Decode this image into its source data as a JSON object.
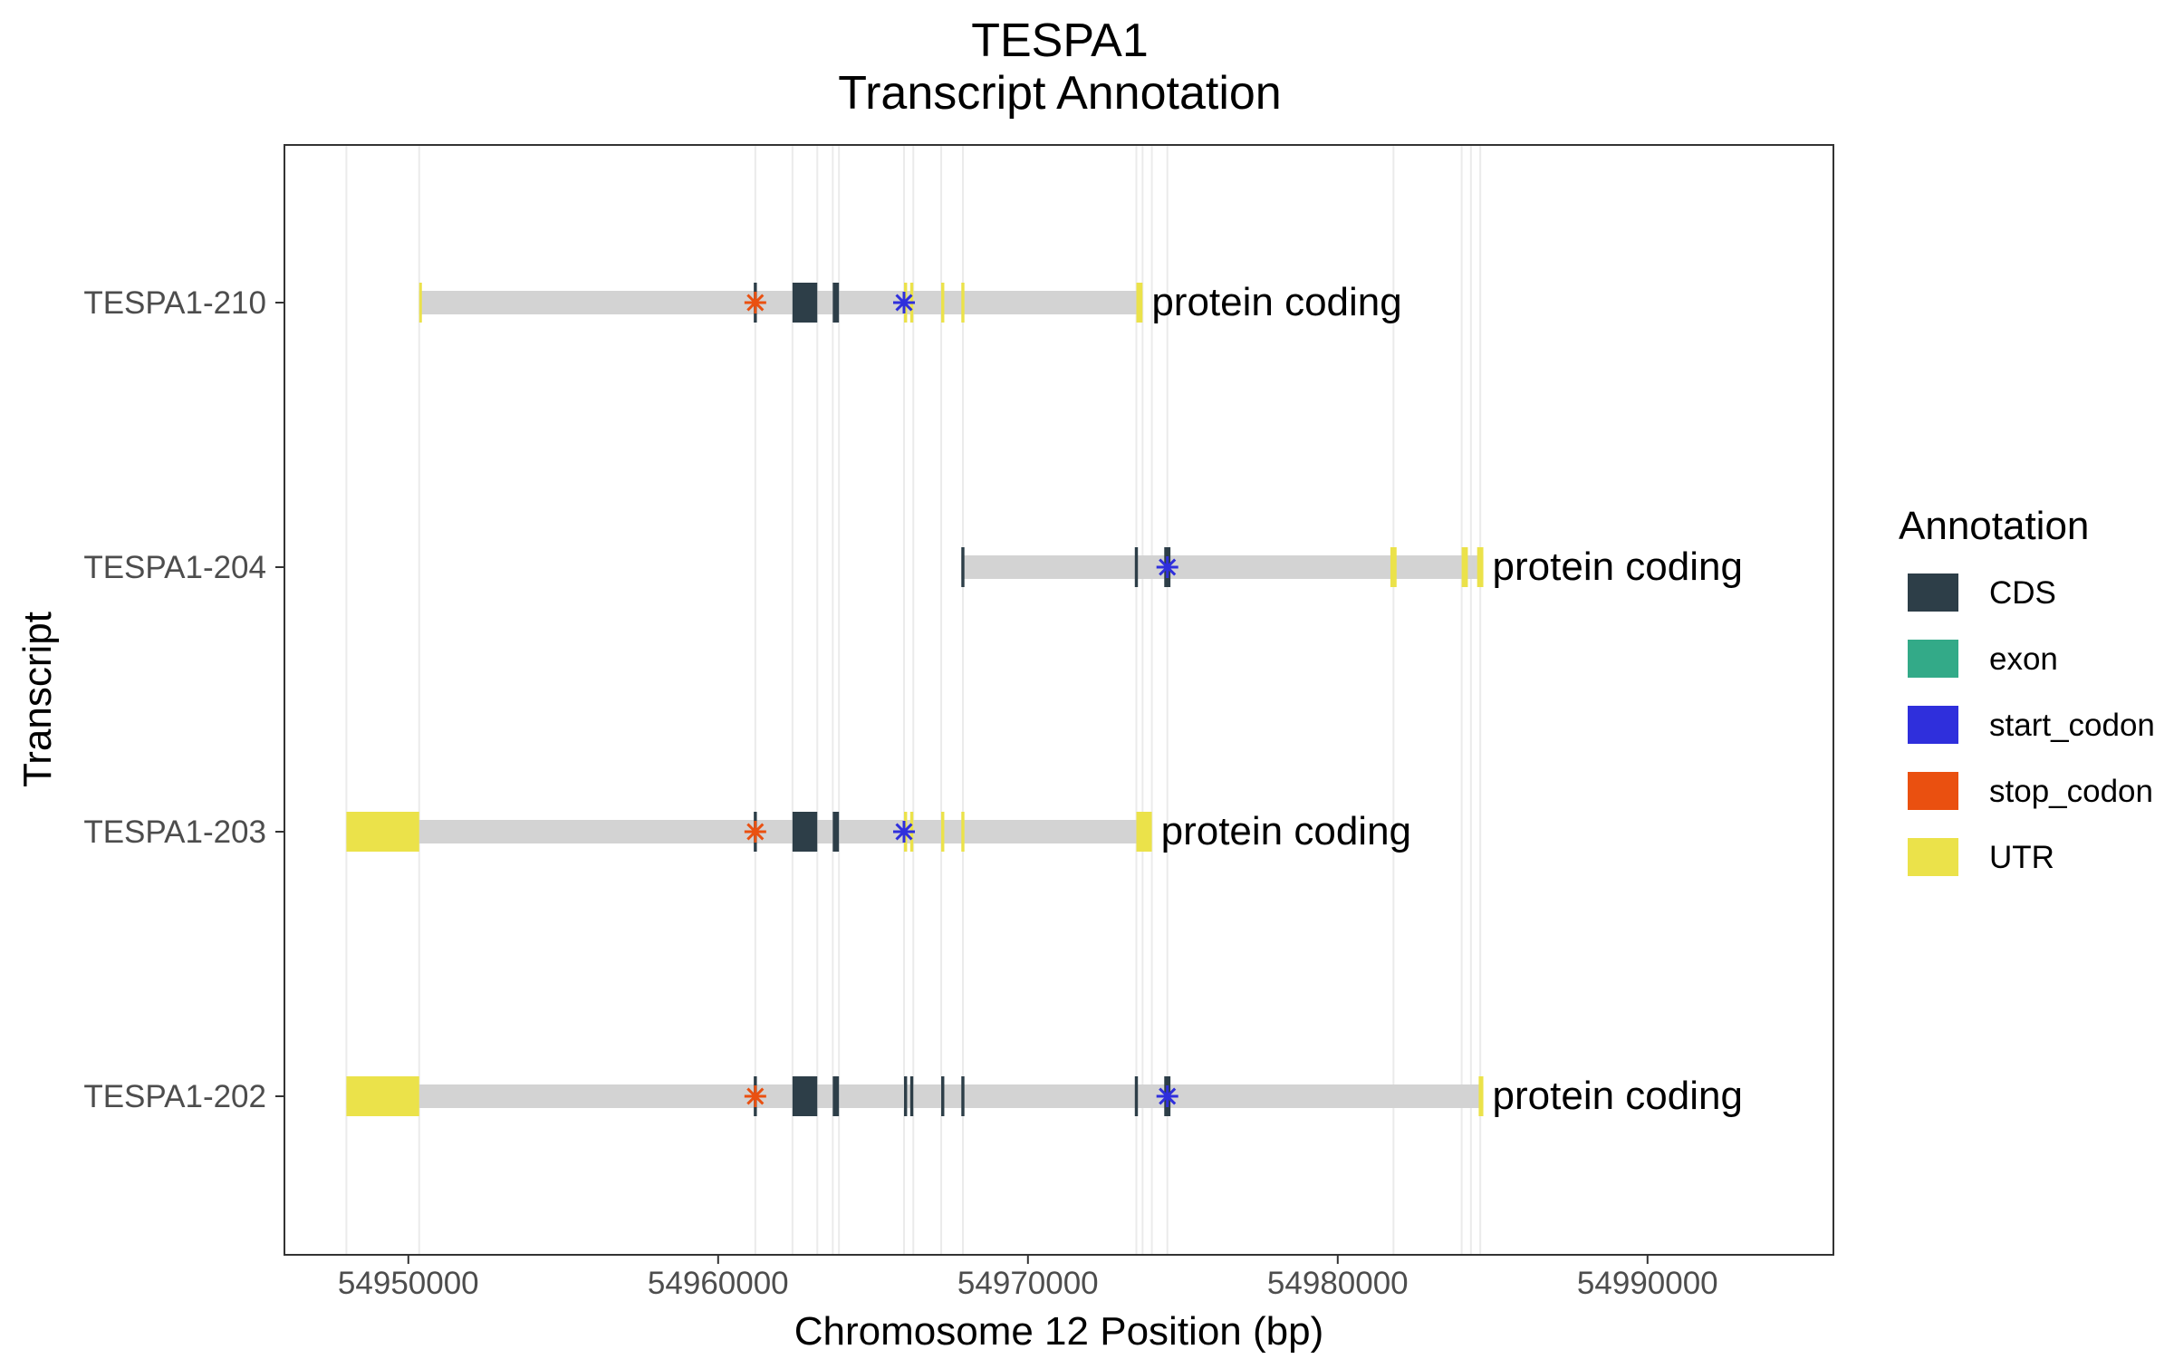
{
  "colors": {
    "CDS": "#2d3e48",
    "exon": "#33aa88",
    "start_codon": "#2f2fdc",
    "stop_codon": "#ea5010",
    "UTR": "#ebe24a",
    "intron": "#d3d3d3",
    "grid": "#ebebeb"
  },
  "chart_data": {
    "type": "gene-track",
    "title": "TESPA1",
    "subtitle": "Transcript Annotation",
    "xlabel": "Chromosome 12 Position (bp)",
    "ylabel": "Transcript",
    "xlim": [
      54946000,
      54996000
    ],
    "xticks": [
      54950000,
      54960000,
      54970000,
      54980000,
      54990000
    ],
    "legend": {
      "title": "Annotation",
      "position": "right",
      "items": [
        "CDS",
        "exon",
        "start_codon",
        "stop_codon",
        "UTR"
      ]
    },
    "vlines": [
      54948000,
      54950350,
      54961200,
      54962400,
      54963200,
      54963700,
      54963900,
      54966000,
      54966300,
      54967200,
      54967900,
      54973500,
      54973700,
      54974000,
      54974500,
      54981800,
      54984000,
      54984300,
      54984600
    ],
    "transcripts": [
      {
        "name": "TESPA1-210",
        "biotype": "protein coding",
        "start": 54950350,
        "end": 54973700,
        "utr": [
          [
            54950350,
            54950400
          ],
          [
            54966000,
            54966100
          ],
          [
            54966200,
            54966300
          ],
          [
            54967200,
            54967300
          ],
          [
            54967850,
            54967950
          ],
          [
            54973500,
            54973700
          ]
        ],
        "cds": [
          [
            54961150,
            54961250
          ],
          [
            54962400,
            54963200
          ],
          [
            54963700,
            54963900
          ]
        ],
        "stop_codon": 54961200,
        "start_codon": 54966000
      },
      {
        "name": "TESPA1-204",
        "biotype": "protein coding",
        "start": 54967850,
        "end": 54984700,
        "utr": [
          [
            54981700,
            54981900
          ],
          [
            54984000,
            54984200
          ],
          [
            54984500,
            54984700
          ]
        ],
        "cds": [
          [
            54967850,
            54967950
          ],
          [
            54973450,
            54973550
          ],
          [
            54974400,
            54974600
          ]
        ],
        "stop_codon": null,
        "start_codon": 54974500
      },
      {
        "name": "TESPA1-203",
        "biotype": "protein coding",
        "start": 54948000,
        "end": 54974000,
        "utr": [
          [
            54948000,
            54950350
          ],
          [
            54966000,
            54966100
          ],
          [
            54966200,
            54966300
          ],
          [
            54967200,
            54967300
          ],
          [
            54967850,
            54967950
          ],
          [
            54973500,
            54974000
          ]
        ],
        "cds": [
          [
            54961150,
            54961250
          ],
          [
            54962400,
            54963200
          ],
          [
            54963700,
            54963900
          ]
        ],
        "stop_codon": 54961200,
        "start_codon": 54966000
      },
      {
        "name": "TESPA1-202",
        "biotype": "protein coding",
        "start": 54948000,
        "end": 54984700,
        "utr": [
          [
            54948000,
            54950350
          ],
          [
            54984550,
            54984700
          ]
        ],
        "cds": [
          [
            54961150,
            54961250
          ],
          [
            54962400,
            54963200
          ],
          [
            54963700,
            54963900
          ],
          [
            54966000,
            54966100
          ],
          [
            54966200,
            54966300
          ],
          [
            54967200,
            54967300
          ],
          [
            54967850,
            54967950
          ],
          [
            54973450,
            54973550
          ],
          [
            54974400,
            54974600
          ]
        ],
        "stop_codon": 54961200,
        "start_codon": 54974500
      }
    ]
  }
}
